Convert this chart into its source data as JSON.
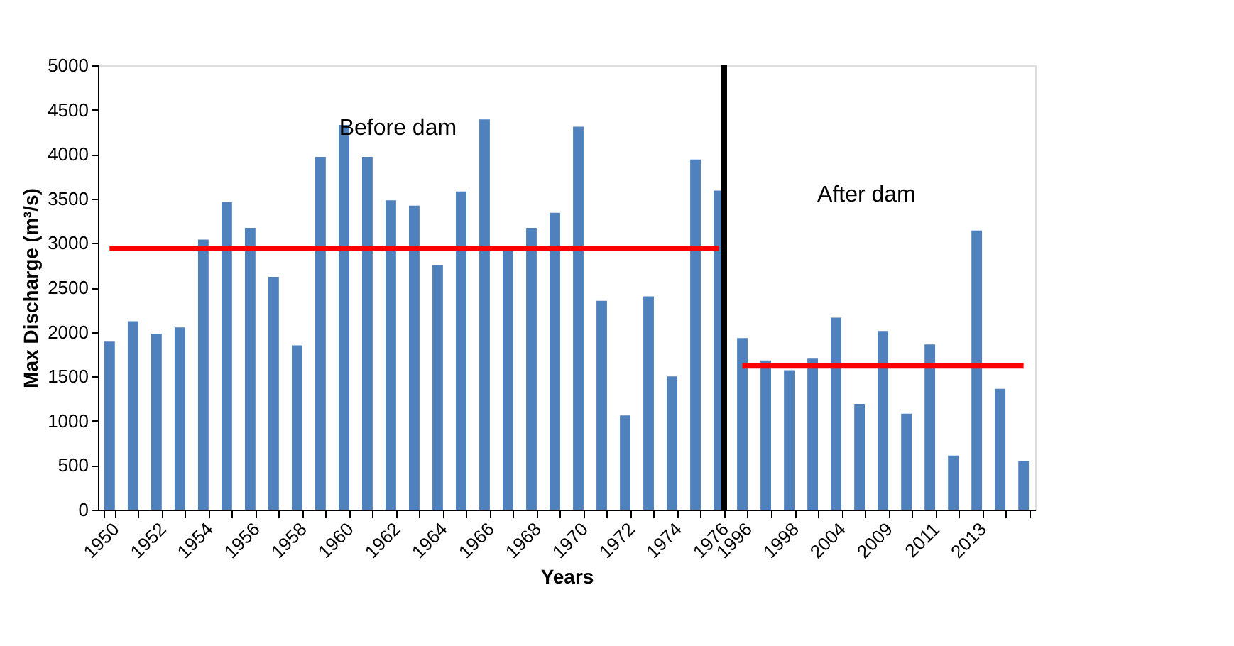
{
  "chart_data": {
    "type": "bar",
    "xlabel": "Years",
    "ylabel": "Max Discharge (m³/s)",
    "categories": [
      "1950",
      null,
      "1952",
      null,
      "1954",
      null,
      "1956",
      null,
      "1958",
      null,
      "1960",
      null,
      "1962",
      null,
      "1964",
      null,
      "1966",
      null,
      "1968",
      null,
      "1970",
      null,
      "1972",
      null,
      "1974",
      null,
      "1976",
      "1996",
      null,
      "1998",
      null,
      "2004",
      null,
      "2009",
      null,
      "2011",
      null,
      "2013",
      null,
      null
    ],
    "series": [
      {
        "color": "#4f81bd",
        "values": [
          1890,
          2120,
          1980,
          2050,
          3040,
          3460,
          3170,
          2620,
          1850,
          3970,
          4330,
          3970,
          3480,
          3420,
          2750,
          3580,
          4390,
          2920,
          3170,
          3340,
          4310,
          2350,
          1060,
          2400,
          1500,
          3940,
          3590,
          1930,
          1680,
          1570,
          1700,
          2160,
          1190,
          2010,
          1080,
          1860,
          610,
          3140,
          1360,
          550
        ]
      },
      {
        "type": "line",
        "color": "#ff0000",
        "values": [
          2940,
          2940,
          2940,
          2940,
          2940,
          2940,
          2940,
          2940,
          2940,
          2940,
          2940,
          2940,
          2940,
          2940,
          2940,
          2940,
          2940,
          2940,
          2940,
          2940,
          2940,
          2940,
          2940,
          2940,
          2940,
          2940,
          2940,
          null,
          null,
          null,
          null,
          null,
          null,
          null,
          null,
          null,
          null,
          null,
          null,
          null
        ]
      },
      {
        "type": "line",
        "color": "#ff0000",
        "values": [
          null,
          null,
          null,
          null,
          null,
          null,
          null,
          null,
          null,
          null,
          null,
          null,
          null,
          null,
          null,
          null,
          null,
          null,
          null,
          null,
          null,
          null,
          null,
          null,
          null,
          null,
          null,
          1620,
          1620,
          1620,
          1620,
          1620,
          1620,
          1620,
          1620,
          1620,
          1620,
          1620,
          1620,
          1620
        ]
      }
    ],
    "ylim": [
      0,
      5000
    ],
    "yticks": [
      0,
      500,
      1000,
      1500,
      2000,
      2500,
      3000,
      3500,
      4000,
      4500,
      5000
    ],
    "ref_lines": [
      {
        "axis": "x",
        "value": "1976",
        "color": "#000000"
      }
    ],
    "annotations": [
      "Before dam",
      "After dam"
    ]
  }
}
